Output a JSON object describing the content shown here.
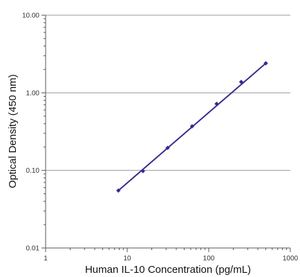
{
  "chart_data": {
    "type": "scatter",
    "title": "",
    "xlabel": "Human IL-10 Concentration (pg/mL)",
    "ylabel": "Optical Density (450 nm)",
    "xscale": "log",
    "yscale": "log",
    "xlim": [
      1,
      1000
    ],
    "ylim": [
      0.01,
      10
    ],
    "x_ticks": [
      1,
      10,
      100,
      1000
    ],
    "x_tick_labels": [
      "1",
      "10",
      "100",
      "1000"
    ],
    "y_ticks": [
      0.01,
      0.1,
      1,
      10
    ],
    "y_tick_labels": [
      "0.01",
      "0.10",
      "1.00",
      "10.00"
    ],
    "grid": "horizontal major lines",
    "series": [
      {
        "x": [
          7.8,
          15.6,
          31.3,
          62.5,
          125,
          250,
          500
        ],
        "y": [
          0.055,
          0.098,
          0.195,
          0.37,
          0.72,
          1.38,
          2.4
        ],
        "color": "#3a2a8c",
        "marker": "diamond",
        "fit_line": "straight line through first and last points"
      }
    ]
  }
}
